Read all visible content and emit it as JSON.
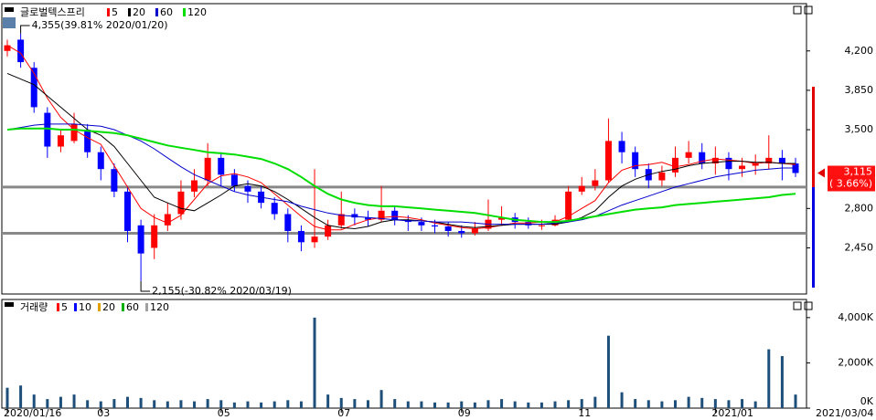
{
  "chart_data": {
    "type": "candlestick",
    "title": "글로벌텍스프리",
    "categories": [
      "2020/01/16",
      null,
      null,
      null,
      null,
      null,
      null,
      "03",
      null,
      null,
      null,
      null,
      null,
      null,
      null,
      null,
      "05",
      null,
      null,
      null,
      null,
      null,
      null,
      null,
      null,
      "07",
      null,
      null,
      null,
      null,
      null,
      null,
      null,
      null,
      "09",
      null,
      null,
      null,
      null,
      null,
      null,
      null,
      null,
      "11",
      null,
      null,
      null,
      null,
      null,
      null,
      null,
      null,
      null,
      "2021/01",
      null,
      null,
      null,
      null,
      null,
      "2021/03/04"
    ],
    "open": [
      4200,
      4300,
      4050,
      3650,
      3350,
      3400,
      3500,
      3300,
      3150,
      2950,
      2650,
      2450,
      2650,
      2750,
      2950,
      3050,
      3250,
      3100,
      3000,
      2950,
      2850,
      2750,
      2600,
      2500,
      2550,
      2650,
      2750,
      2720,
      2700,
      2780,
      2700,
      2680,
      2650,
      2640,
      2600,
      2580,
      2620,
      2700,
      2720,
      2680,
      2650,
      2650,
      2700,
      2950,
      3000,
      3050,
      3400,
      3300,
      3150,
      3050,
      3120,
      3250,
      3300,
      3200,
      3250,
      3150,
      3180,
      3200,
      3250,
      3200
    ],
    "high": [
      4300,
      4355,
      4100,
      3700,
      3500,
      3650,
      3550,
      3350,
      3200,
      3000,
      2700,
      2750,
      2850,
      3050,
      3150,
      3380,
      3300,
      3150,
      3050,
      3000,
      2900,
      2800,
      2650,
      3150,
      2700,
      2950,
      2800,
      2780,
      3000,
      2820,
      2740,
      2720,
      2700,
      2680,
      2650,
      2680,
      2880,
      2820,
      2760,
      2720,
      2700,
      2740,
      3000,
      3080,
      3150,
      3600,
      3480,
      3350,
      3200,
      3180,
      3350,
      3400,
      3380,
      3350,
      3300,
      3250,
      3280,
      3450,
      3320,
      3250
    ],
    "low": [
      4150,
      4050,
      3650,
      3250,
      3300,
      3380,
      3250,
      3050,
      2900,
      2500,
      2155,
      2350,
      2600,
      2700,
      2900,
      3000,
      3000,
      2950,
      2850,
      2800,
      2700,
      2500,
      2420,
      2450,
      2520,
      2620,
      2650,
      2640,
      2680,
      2650,
      2600,
      2600,
      2580,
      2550,
      2540,
      2560,
      2600,
      2650,
      2620,
      2620,
      2610,
      2640,
      2690,
      2920,
      2960,
      3030,
      3200,
      3080,
      2980,
      3000,
      3080,
      3200,
      3150,
      3100,
      3050,
      3080,
      3100,
      3150,
      3050,
      3080
    ],
    "close": [
      4250,
      4100,
      3700,
      3350,
      3450,
      3550,
      3300,
      3150,
      2950,
      2600,
      2400,
      2650,
      2750,
      2950,
      3050,
      3250,
      3100,
      3000,
      2950,
      2850,
      2750,
      2600,
      2500,
      2550,
      2650,
      2750,
      2720,
      2700,
      2780,
      2700,
      2680,
      2650,
      2640,
      2600,
      2580,
      2620,
      2700,
      2720,
      2680,
      2650,
      2650,
      2700,
      2950,
      3000,
      3050,
      3400,
      3300,
      3150,
      3050,
      3120,
      3250,
      3300,
      3200,
      3250,
      3150,
      3180,
      3200,
      3250,
      3200,
      3115
    ],
    "up_color": "#ff0000",
    "down_color": "#0000ff",
    "ylim": [
      2040,
      4620
    ],
    "yticks": [
      {
        "value": 2450,
        "label": "2,450"
      },
      {
        "value": 2800,
        "label": "2,800"
      },
      {
        "value": 3500,
        "label": "3,500"
      },
      {
        "value": 3850,
        "label": "3,850"
      },
      {
        "value": 4200,
        "label": "4,200"
      }
    ],
    "series": [
      {
        "name": "5",
        "color": "#ff0000",
        "values": [
          4250,
          4180,
          4000,
          3780,
          3610,
          3500,
          3430,
          3370,
          3180,
          2990,
          2800,
          2720,
          2670,
          2740,
          2880,
          3020,
          3090,
          3110,
          3080,
          3030,
          2930,
          2830,
          2730,
          2640,
          2610,
          2610,
          2660,
          2700,
          2720,
          2730,
          2720,
          2700,
          2670,
          2650,
          2630,
          2620,
          2630,
          2650,
          2670,
          2670,
          2680,
          2680,
          2730,
          2800,
          2870,
          3030,
          3140,
          3180,
          3190,
          3210,
          3170,
          3190,
          3220,
          3240,
          3230,
          3220,
          3200,
          3210,
          3200,
          3190
        ]
      },
      {
        "name": "20",
        "color": "#000000",
        "values": [
          4000,
          3950,
          3900,
          3800,
          3700,
          3600,
          3500,
          3450,
          3350,
          3200,
          3050,
          2900,
          2850,
          2800,
          2780,
          2850,
          2920,
          3000,
          3020,
          3000,
          2950,
          2880,
          2800,
          2720,
          2650,
          2630,
          2620,
          2640,
          2680,
          2700,
          2700,
          2690,
          2680,
          2660,
          2640,
          2630,
          2640,
          2650,
          2660,
          2660,
          2660,
          2660,
          2680,
          2720,
          2780,
          2900,
          3000,
          3060,
          3100,
          3130,
          3150,
          3180,
          3200,
          3210,
          3220,
          3220,
          3210,
          3210,
          3200,
          3200
        ]
      },
      {
        "name": "60",
        "color": "#0000cc",
        "values": [
          3500,
          3520,
          3540,
          3550,
          3550,
          3550,
          3540,
          3530,
          3500,
          3450,
          3400,
          3330,
          3250,
          3170,
          3100,
          3050,
          3000,
          2950,
          2920,
          2900,
          2880,
          2860,
          2820,
          2790,
          2760,
          2740,
          2730,
          2720,
          2710,
          2700,
          2690,
          2690,
          2680,
          2680,
          2680,
          2670,
          2660,
          2660,
          2660,
          2660,
          2660,
          2670,
          2680,
          2700,
          2730,
          2780,
          2830,
          2870,
          2910,
          2950,
          2990,
          3020,
          3050,
          3080,
          3100,
          3120,
          3140,
          3150,
          3160,
          3160
        ]
      },
      {
        "name": "120",
        "color": "#00dd00",
        "values": [
          3500,
          3510,
          3510,
          3510,
          3500,
          3500,
          3490,
          3480,
          3470,
          3450,
          3420,
          3390,
          3360,
          3340,
          3320,
          3300,
          3290,
          3280,
          3260,
          3240,
          3200,
          3150,
          3080,
          3000,
          2930,
          2880,
          2850,
          2830,
          2820,
          2820,
          2810,
          2800,
          2790,
          2780,
          2770,
          2760,
          2740,
          2720,
          2700,
          2690,
          2680,
          2680,
          2690,
          2710,
          2730,
          2750,
          2770,
          2790,
          2800,
          2810,
          2830,
          2840,
          2850,
          2860,
          2870,
          2880,
          2890,
          2900,
          2920,
          2930
        ]
      }
    ],
    "hlines": [
      2990,
      2580
    ],
    "high_annotation": "4,355(39.81% 2020/01/20)",
    "low_annotation": "2,155(-30.82% 2020/03/19)",
    "last_label": "3,115",
    "change_label": "( 3.66%)",
    "volume": {
      "title": "거래량",
      "color": "#1e4f7a",
      "values": [
        900,
        1000,
        600,
        400,
        500,
        600,
        350,
        300,
        400,
        500,
        450,
        350,
        300,
        350,
        300,
        400,
        350,
        250,
        300,
        250,
        300,
        350,
        300,
        4000,
        600,
        450,
        400,
        350,
        800,
        400,
        300,
        300,
        250,
        250,
        300,
        250,
        350,
        400,
        300,
        250,
        250,
        300,
        350,
        400,
        500,
        3200,
        700,
        400,
        350,
        300,
        350,
        500,
        450,
        400,
        350,
        400,
        300,
        2600,
        2300,
        600
      ],
      "ylim": [
        0,
        4720
      ],
      "yticks": [
        {
          "value": 0,
          "label": "0K"
        },
        {
          "value": 2000,
          "label": "2,000K"
        },
        {
          "value": 4000,
          "label": "4,000K"
        }
      ],
      "legend": [
        {
          "name": "5",
          "color": "#ff0000"
        },
        {
          "name": "10",
          "color": "#0000ff"
        },
        {
          "name": "20",
          "color": "#e0a000"
        },
        {
          "name": "60",
          "color": "#00b000"
        },
        {
          "name": "120",
          "color": "#a0a0a0"
        }
      ]
    }
  }
}
